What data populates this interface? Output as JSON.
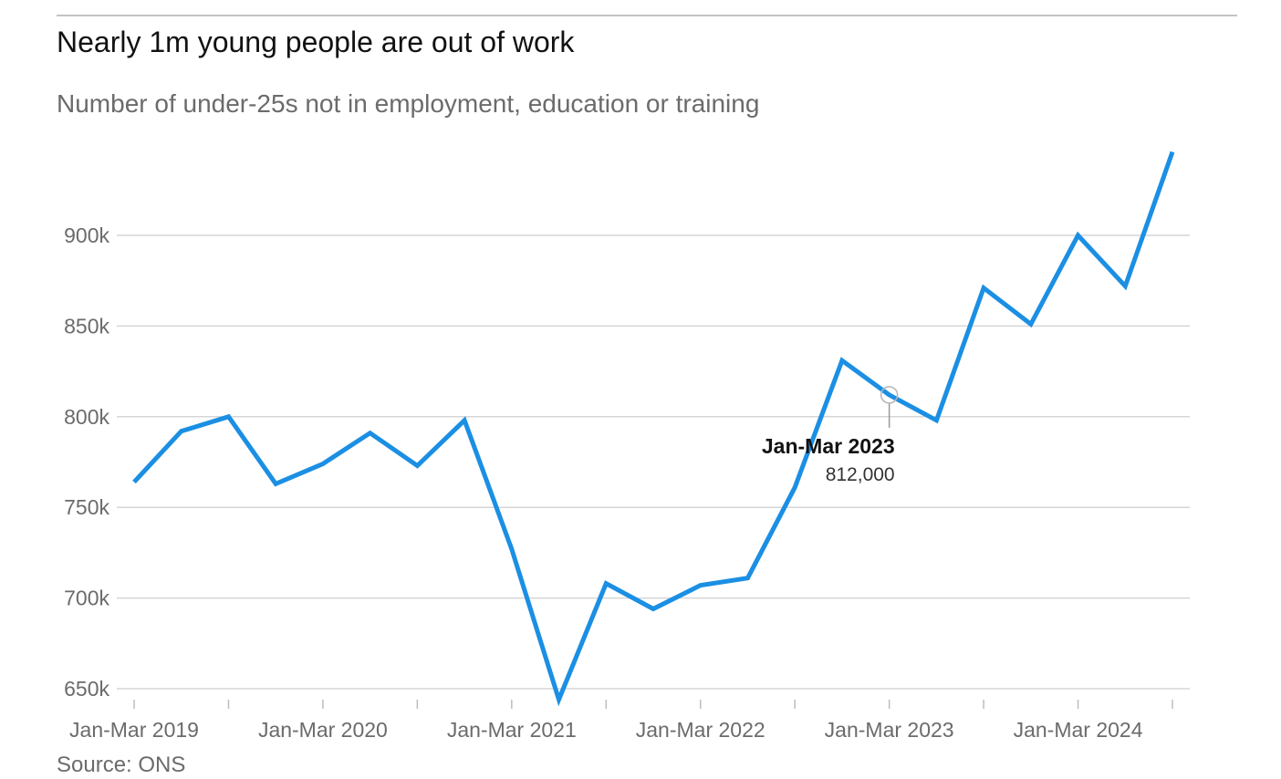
{
  "header": {
    "title": "Nearly 1m young people are out of work",
    "subtitle": "Number of under-25s not in employment, education or training"
  },
  "footer": {
    "source": "Source: ONS"
  },
  "colors": {
    "line": "#1b8fe3",
    "grid": "#d6d6d6",
    "text": "#121212",
    "muted": "#6b6b6b"
  },
  "chart_data": {
    "type": "line",
    "title": "Nearly 1m young people are out of work",
    "subtitle": "Number of under-25s not in employment, education or training",
    "xlabel": "",
    "ylabel": "",
    "ylim": [
      645000,
      950000
    ],
    "yticks": [
      650000,
      700000,
      750000,
      800000,
      850000,
      900000
    ],
    "ytick_labels": [
      "650k",
      "700k",
      "750k",
      "800k",
      "850k",
      "900k"
    ],
    "xtick_labels": [
      "Jan-Mar 2019",
      "Jan-Mar 2020",
      "Jan-Mar 2021",
      "Jan-Mar 2022",
      "Jan-Mar 2023",
      "Jan-Mar 2024"
    ],
    "grid": true,
    "x": [
      "Jan-Mar 2019",
      "Apr-Jun 2019",
      "Jul-Sep 2019",
      "Oct-Dec 2019",
      "Jan-Mar 2020",
      "Apr-Jun 2020",
      "Jul-Sep 2020",
      "Oct-Dec 2020",
      "Jan-Mar 2021",
      "Apr-Jun 2021",
      "Jul-Sep 2021",
      "Oct-Dec 2021",
      "Jan-Mar 2022",
      "Apr-Jun 2022",
      "Jul-Sep 2022",
      "Oct-Dec 2022",
      "Jan-Mar 2023",
      "Apr-Jun 2023",
      "Jul-Sep 2023",
      "Oct-Dec 2023",
      "Jan-Mar 2024",
      "Apr-Jun 2024",
      "Jul-Sep 2024"
    ],
    "series": [
      {
        "values": [
          764000,
          792000,
          800000,
          763000,
          774000,
          791000,
          773000,
          798000,
          727000,
          644000,
          708000,
          694000,
          707000,
          711000,
          761000,
          831000,
          812000,
          798000,
          871000,
          851000,
          900000,
          872000,
          946000
        ]
      }
    ],
    "annotation": {
      "index": 16,
      "label": "Jan-Mar 2023",
      "value_text": "812,000"
    }
  }
}
